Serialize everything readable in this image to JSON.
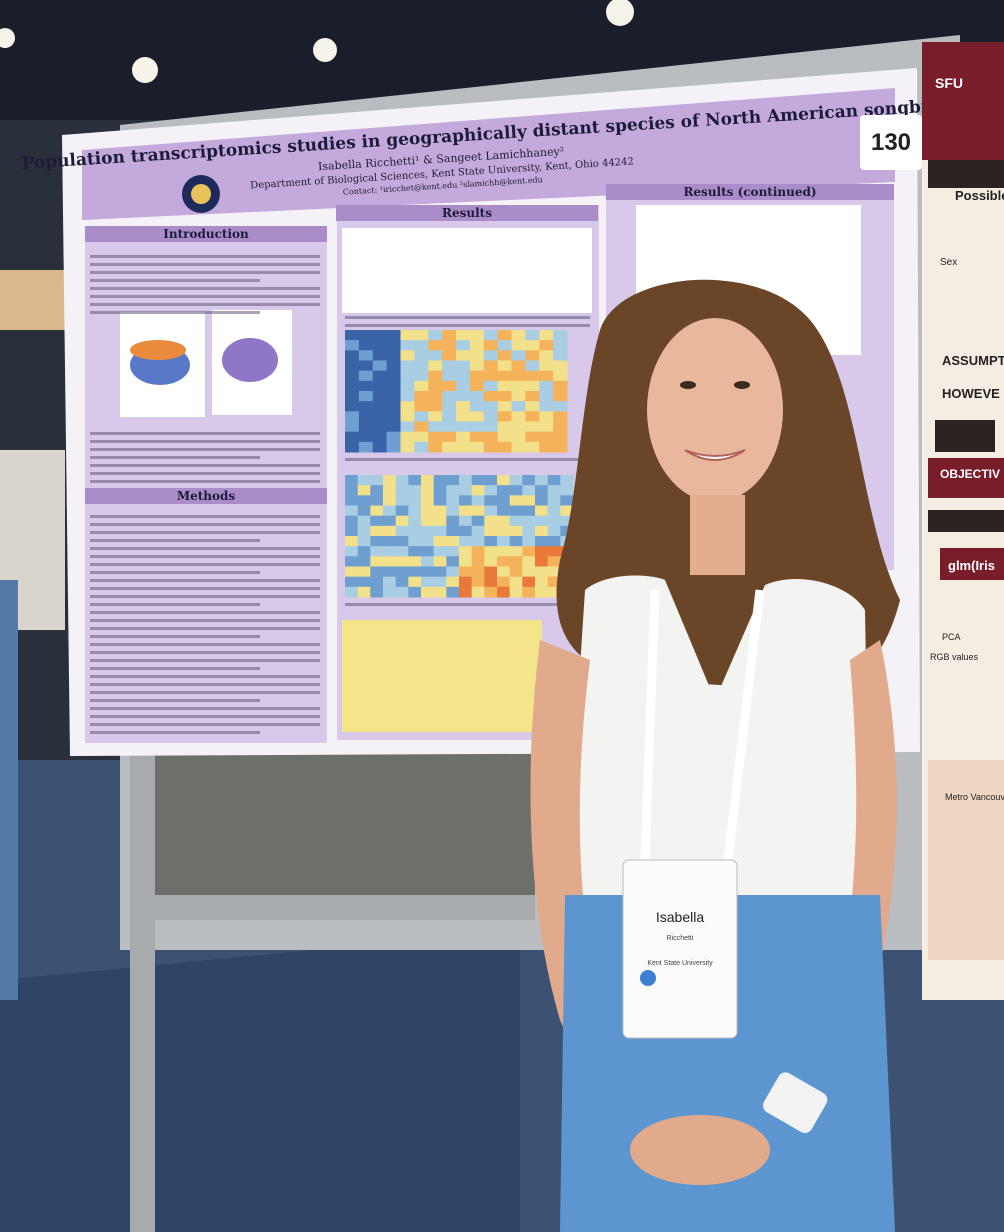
{
  "poster": {
    "number": "130",
    "title": "Population transcriptomics studies in geographically distant species of North American songbirds",
    "authors": "Isabella Ricchetti¹ & Sangeet Lamichhaney²",
    "department": "Department of Biological Sciences, Kent State University, Kent, Ohio 44242",
    "contact": "Contact: ¹iricchet@kent.edu ²slamichh@kent.edu",
    "sections": [
      "Introduction",
      "Results",
      "Results (continued)",
      "Methods"
    ]
  },
  "badge": {
    "first_name": "Isabella",
    "last_name": "Ricchetti",
    "affiliation": "Kent State University"
  },
  "neighbor_poster": {
    "texts": [
      "SFU",
      "Possible",
      "Sex",
      "ASSUMPT",
      "HOWEVE",
      "OBJECTIV",
      "glm(Iris",
      "PCA",
      "RGB values",
      "Metro Vancouver, BC, Canada"
    ]
  }
}
